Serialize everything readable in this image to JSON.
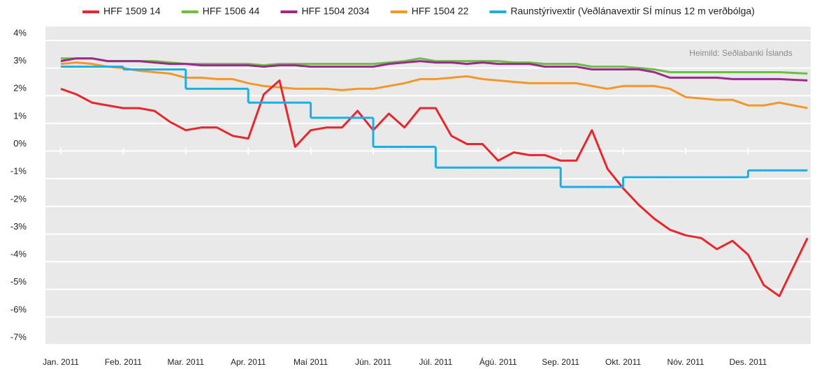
{
  "chart_data": {
    "type": "line",
    "annotation": "Heimild: Seðlabanki Íslands",
    "x": [
      0,
      0.25,
      0.5,
      0.75,
      1,
      1.25,
      1.5,
      1.75,
      2,
      2.25,
      2.5,
      2.75,
      3,
      3.25,
      3.5,
      3.75,
      4,
      4.25,
      4.5,
      4.75,
      5,
      5.25,
      5.5,
      5.75,
      6,
      6.25,
      6.5,
      6.75,
      7,
      7.25,
      7.5,
      7.75,
      8,
      8.25,
      8.5,
      8.75,
      9,
      9.25,
      9.5,
      9.75,
      10,
      10.25,
      10.5,
      10.75,
      11,
      11.25,
      11.5,
      11.95
    ],
    "xlim": [
      -0.25,
      12.2
    ],
    "xticks": [
      {
        "value": 0,
        "label": "Jan. 2011"
      },
      {
        "value": 1,
        "label": "Feb. 2011"
      },
      {
        "value": 2,
        "label": "Mar. 2011"
      },
      {
        "value": 3,
        "label": "Apr. 2011"
      },
      {
        "value": 4,
        "label": "Maí 2011"
      },
      {
        "value": 5,
        "label": "Jún. 2011"
      },
      {
        "value": 6,
        "label": "Júl. 2011"
      },
      {
        "value": 7,
        "label": "Ágú. 2011"
      },
      {
        "value": 8,
        "label": "Sep. 2011"
      },
      {
        "value": 9,
        "label": "Okt. 2011"
      },
      {
        "value": 10,
        "label": "Nóv. 2011"
      },
      {
        "value": 11,
        "label": "Des. 2011"
      }
    ],
    "ylim": [
      -7,
      4
    ],
    "yticks": [
      {
        "value": 4,
        "label": "4%"
      },
      {
        "value": 3,
        "label": "3%"
      },
      {
        "value": 2,
        "label": "2%"
      },
      {
        "value": 1,
        "label": "1%"
      },
      {
        "value": 0,
        "label": "0%"
      },
      {
        "value": -1,
        "label": "-1%"
      },
      {
        "value": -2,
        "label": "-2%"
      },
      {
        "value": -3,
        "label": "-3%"
      },
      {
        "value": -4,
        "label": "-4%"
      },
      {
        "value": -5,
        "label": "-5%"
      },
      {
        "value": -6,
        "label": "-6%"
      },
      {
        "value": -7,
        "label": "-7%"
      }
    ],
    "grid": true,
    "legend": "top",
    "series": [
      {
        "name": "HFF 1509 14",
        "color": "#e8262b",
        "values": [
          2.0,
          1.8,
          1.5,
          1.4,
          1.3,
          1.3,
          1.2,
          0.8,
          0.5,
          0.6,
          0.6,
          0.3,
          0.2,
          1.8,
          2.3,
          -0.1,
          0.5,
          0.6,
          0.6,
          1.2,
          0.5,
          1.1,
          0.6,
          1.3,
          1.3,
          0.3,
          0.0,
          0.0,
          -0.6,
          -0.3,
          -0.4,
          -0.4,
          -0.6,
          -0.6,
          0.5,
          -0.9,
          -1.6,
          -2.2,
          -2.7,
          -3.1,
          -3.3,
          -3.4,
          -3.8,
          -3.5,
          -4.0,
          -5.1,
          -5.5,
          -3.4
        ]
      },
      {
        "name": "HFF 1506 44",
        "color": "#6cbf45",
        "values": [
          3.1,
          3.1,
          3.1,
          3.0,
          3.0,
          3.0,
          3.0,
          2.95,
          2.9,
          2.9,
          2.9,
          2.9,
          2.9,
          2.85,
          2.9,
          2.9,
          2.9,
          2.9,
          2.9,
          2.9,
          2.9,
          2.95,
          3.0,
          3.1,
          3.0,
          3.0,
          3.0,
          3.0,
          3.0,
          2.95,
          2.95,
          2.9,
          2.9,
          2.9,
          2.8,
          2.8,
          2.8,
          2.75,
          2.7,
          2.6,
          2.6,
          2.6,
          2.6,
          2.6,
          2.6,
          2.6,
          2.6,
          2.55
        ]
      },
      {
        "name": "HFF 1504 2034",
        "color": "#9c2a8e",
        "values": [
          3.0,
          3.1,
          3.1,
          3.0,
          3.0,
          3.0,
          2.95,
          2.9,
          2.9,
          2.85,
          2.85,
          2.85,
          2.85,
          2.8,
          2.85,
          2.85,
          2.8,
          2.8,
          2.8,
          2.8,
          2.8,
          2.9,
          2.95,
          3.0,
          2.95,
          2.95,
          2.9,
          2.95,
          2.9,
          2.9,
          2.9,
          2.8,
          2.8,
          2.8,
          2.7,
          2.7,
          2.7,
          2.7,
          2.6,
          2.4,
          2.4,
          2.4,
          2.4,
          2.35,
          2.35,
          2.35,
          2.35,
          2.3
        ]
      },
      {
        "name": "HFF 1504 22",
        "color": "#f5962a",
        "values": [
          2.9,
          2.95,
          2.9,
          2.8,
          2.75,
          2.65,
          2.6,
          2.55,
          2.4,
          2.4,
          2.35,
          2.35,
          2.2,
          2.1,
          2.05,
          2.0,
          2.0,
          2.0,
          1.95,
          2.0,
          2.0,
          2.1,
          2.2,
          2.35,
          2.35,
          2.4,
          2.45,
          2.35,
          2.3,
          2.25,
          2.2,
          2.2,
          2.2,
          2.2,
          2.1,
          2.0,
          2.1,
          2.1,
          2.1,
          2.0,
          1.7,
          1.65,
          1.6,
          1.6,
          1.4,
          1.4,
          1.5,
          1.3
        ]
      },
      {
        "name": "Raunstýrivextir (Veðlánavextir SÍ mínus 12 m verðbólga)",
        "color": "#1aaee5",
        "step": true,
        "values": [
          2.8,
          2.8,
          2.8,
          2.8,
          2.7,
          2.7,
          2.7,
          2.7,
          2.0,
          2.0,
          2.0,
          2.0,
          1.5,
          1.5,
          1.5,
          1.5,
          0.95,
          0.95,
          0.95,
          0.95,
          -0.1,
          -0.1,
          -0.1,
          -0.1,
          -0.85,
          -0.85,
          -0.85,
          -0.85,
          -0.85,
          -0.85,
          -0.85,
          -0.85,
          -1.55,
          -1.55,
          -1.55,
          -1.55,
          -1.2,
          -1.2,
          -1.2,
          -1.2,
          -1.2,
          -1.2,
          -1.2,
          -1.2,
          -0.95,
          -0.95,
          -0.95,
          -0.95
        ]
      }
    ]
  }
}
